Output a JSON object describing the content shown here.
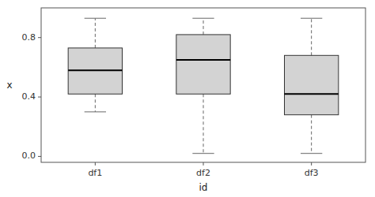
{
  "chart_data": {
    "type": "box",
    "categories": [
      "df1",
      "df2",
      "df3"
    ],
    "boxes": [
      {
        "q1": 0.42,
        "median": 0.58,
        "q3": 0.73,
        "whisker_low": 0.3,
        "whisker_high": 0.93
      },
      {
        "q1": 0.42,
        "median": 0.65,
        "q3": 0.82,
        "whisker_low": 0.02,
        "whisker_high": 0.93
      },
      {
        "q1": 0.28,
        "median": 0.42,
        "q3": 0.68,
        "whisker_low": 0.02,
        "whisker_high": 0.93
      }
    ],
    "xlabel": "id",
    "ylabel": "x",
    "ylim": [
      -0.04,
      1.0
    ],
    "yticks": [
      {
        "value": 0.0,
        "label": "0.0"
      },
      0.4,
      0.8
    ],
    "color": "#d3d3d3",
    "grid": false
  }
}
